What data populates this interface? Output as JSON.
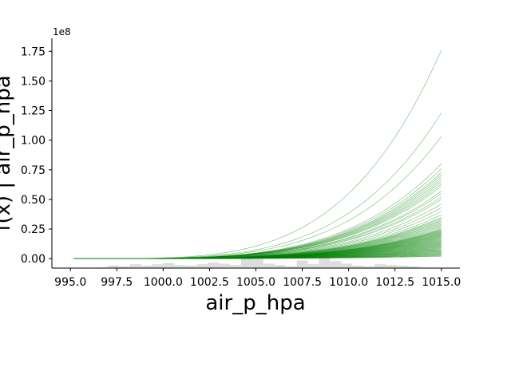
{
  "chart_data": {
    "type": "line",
    "title": "",
    "xlabel": "air_p_hpa",
    "ylabel": "f(x) | air_p_hpa",
    "y_offset_label": "1e8",
    "xlim": [
      994,
      1016
    ],
    "ylim": [
      -0.08,
      1.86
    ],
    "x_ticks": [
      995.0,
      997.5,
      1000.0,
      1002.5,
      1005.0,
      1007.5,
      1010.0,
      1012.5,
      1015.0
    ],
    "x_tick_labels": [
      "995.0",
      "997.5",
      "1000.0",
      "1002.5",
      "1005.0",
      "1007.5",
      "1010.0",
      "1012.5",
      "1015.0"
    ],
    "y_ticks": [
      0.0,
      0.25,
      0.5,
      0.75,
      1.0,
      1.25,
      1.5,
      1.75
    ],
    "y_tick_labels": [
      "0.00",
      "0.25",
      "0.50",
      "0.75",
      "1.00",
      "1.25",
      "1.50",
      "1.75"
    ],
    "grid": false,
    "line_color": "#008000",
    "histogram_color": "#dddddd",
    "curves": {
      "x_start": 995.2,
      "x_end": 1015.0,
      "exponent": 4,
      "end_values": [
        1.76,
        1.23,
        1.03,
        0.8,
        0.76,
        0.73,
        0.71,
        0.69,
        0.67,
        0.65,
        0.63,
        0.61,
        0.57,
        0.55,
        0.52,
        0.5,
        0.46,
        0.43,
        0.4,
        0.37,
        0.35,
        0.34,
        0.33,
        0.32,
        0.31,
        0.3,
        0.29,
        0.28,
        0.27,
        0.26,
        0.25,
        0.245,
        0.24,
        0.235,
        0.23,
        0.225,
        0.22,
        0.215,
        0.21,
        0.205,
        0.2,
        0.195,
        0.19,
        0.185,
        0.18,
        0.175,
        0.17,
        0.165,
        0.16,
        0.155,
        0.15,
        0.145,
        0.14,
        0.135,
        0.13,
        0.125,
        0.12,
        0.115,
        0.11,
        0.105,
        0.1,
        0.095,
        0.09,
        0.085,
        0.08,
        0.075,
        0.07,
        0.065,
        0.06,
        0.055,
        0.05,
        0.045,
        0.04,
        0.035,
        0.03,
        0.025,
        0.02
      ]
    },
    "histogram": {
      "bins": [
        995.2,
        995.8,
        996.4,
        997.0,
        997.6,
        998.2,
        998.8,
        999.4,
        1000.0,
        1000.6,
        1001.2,
        1001.8,
        1002.4,
        1003.0,
        1003.6,
        1004.2,
        1004.8,
        1005.4,
        1006.0,
        1006.6,
        1007.2,
        1007.8,
        1008.4,
        1009.0,
        1009.6,
        1010.2,
        1010.8,
        1011.4,
        1012.0,
        1012.6,
        1013.2,
        1013.8,
        1014.4,
        1015.0
      ],
      "relative_heights": [
        0.02,
        0.02,
        0.05,
        0.2,
        0.15,
        0.3,
        0.2,
        0.3,
        0.4,
        0.25,
        0.2,
        0.3,
        0.45,
        0.35,
        0.25,
        0.85,
        0.7,
        0.35,
        0.25,
        0.15,
        0.6,
        0.3,
        0.9,
        0.55,
        0.35,
        0.2,
        0.15,
        0.3,
        0.25,
        0.2,
        0.15,
        0.05,
        0.02
      ]
    }
  }
}
